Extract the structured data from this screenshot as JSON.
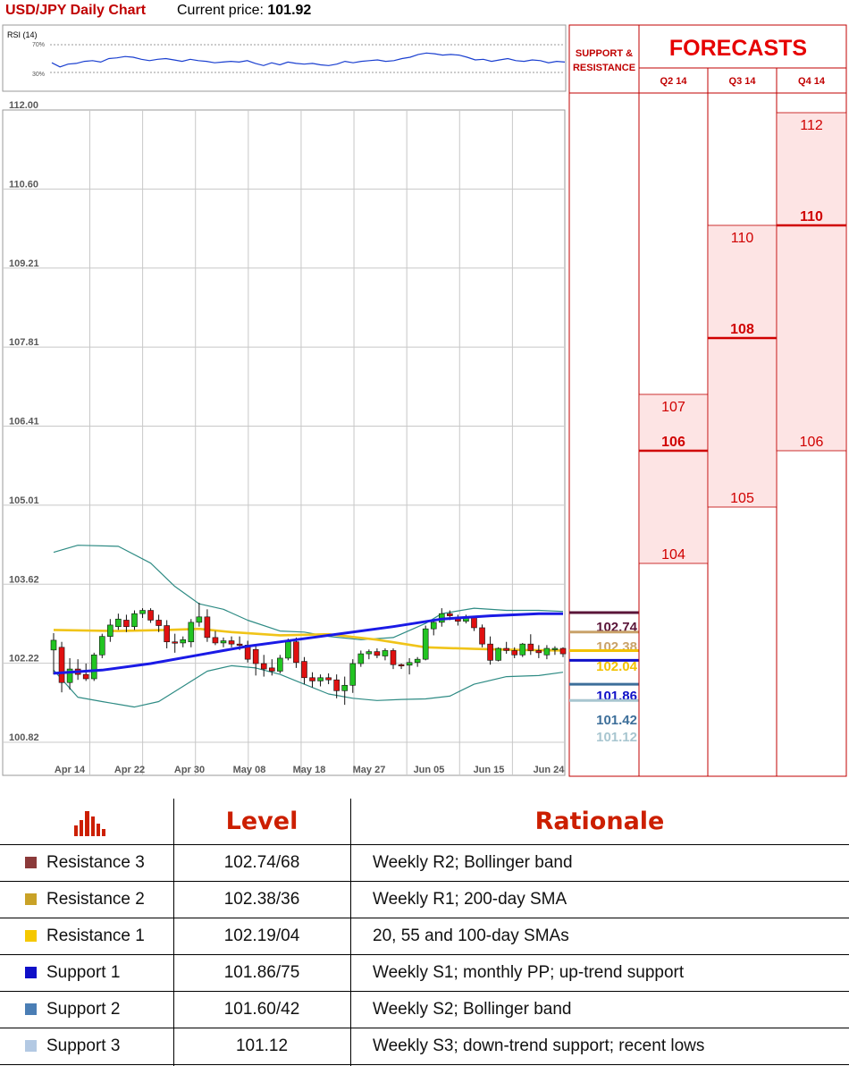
{
  "header": {
    "title": "USD/JPY Daily Chart",
    "price_label": "Current price:",
    "price_value": "101.92"
  },
  "colors": {
    "bull_candle": "#22c422",
    "bear_candle": "#e01010",
    "sma_blue": "#1a1ae6",
    "sma_yellow": "#f0c419",
    "bollinger": "#2e8b84",
    "rsi_line": "#1a3fd0",
    "forecast_red": "#d00000",
    "forecast_fill": "#fde4e4"
  },
  "chart_data": [
    {
      "type": "line",
      "title": "RSI (14)",
      "ylim": [
        0,
        100
      ],
      "reference_levels": [
        "70%",
        "30%"
      ],
      "series": [
        {
          "values": [
            44,
            38,
            42,
            43,
            46,
            47,
            45,
            50,
            51,
            53,
            52,
            49,
            47,
            49,
            50,
            48,
            46,
            49,
            47,
            46,
            44,
            45,
            46,
            45,
            47,
            43,
            40,
            44,
            41,
            45,
            43,
            42,
            43,
            41,
            40,
            42,
            46,
            44,
            46,
            47,
            48,
            46,
            47,
            50,
            52,
            56,
            58,
            57,
            55,
            56,
            55,
            52,
            48,
            49,
            46,
            48,
            50,
            47,
            46,
            48,
            47,
            44,
            46,
            45
          ]
        }
      ]
    },
    {
      "type": "candlestick",
      "title": "USD/JPY Daily Chart",
      "ylim": [
        100.35,
        112.0
      ],
      "y_tick_labels": [
        "112.00",
        "110.60",
        "109.21",
        "107.81",
        "106.41",
        "105.01",
        "103.62",
        "102.22",
        "100.82"
      ],
      "x_tick_labels": [
        "Apr 14",
        "Apr 22",
        "Apr 30",
        "May 08",
        "May 18",
        "May 27",
        "Jun 05",
        "Jun 15",
        "Jun 24"
      ],
      "grid": true,
      "candles": [
        {
          "o": 102.05,
          "h": 102.36,
          "l": 101.6,
          "c": 102.23
        },
        {
          "o": 102.1,
          "h": 102.2,
          "l": 101.27,
          "c": 101.45
        },
        {
          "o": 101.45,
          "h": 101.9,
          "l": 101.32,
          "c": 101.7
        },
        {
          "o": 101.7,
          "h": 101.88,
          "l": 101.5,
          "c": 101.6
        },
        {
          "o": 101.6,
          "h": 101.8,
          "l": 101.48,
          "c": 101.52
        },
        {
          "o": 101.52,
          "h": 102.0,
          "l": 101.48,
          "c": 101.96
        },
        {
          "o": 101.96,
          "h": 102.35,
          "l": 101.9,
          "c": 102.3
        },
        {
          "o": 102.3,
          "h": 102.62,
          "l": 102.2,
          "c": 102.51
        },
        {
          "o": 102.48,
          "h": 102.72,
          "l": 102.42,
          "c": 102.62
        },
        {
          "o": 102.6,
          "h": 102.7,
          "l": 102.38,
          "c": 102.48
        },
        {
          "o": 102.48,
          "h": 102.78,
          "l": 102.42,
          "c": 102.72
        },
        {
          "o": 102.72,
          "h": 102.82,
          "l": 102.64,
          "c": 102.78
        },
        {
          "o": 102.78,
          "h": 102.82,
          "l": 102.55,
          "c": 102.6
        },
        {
          "o": 102.6,
          "h": 102.7,
          "l": 102.38,
          "c": 102.5
        },
        {
          "o": 102.5,
          "h": 102.6,
          "l": 102.08,
          "c": 102.2
        },
        {
          "o": 102.2,
          "h": 102.35,
          "l": 102.0,
          "c": 102.18
        },
        {
          "o": 102.18,
          "h": 102.3,
          "l": 102.1,
          "c": 102.24
        },
        {
          "o": 102.2,
          "h": 102.62,
          "l": 102.1,
          "c": 102.56
        },
        {
          "o": 102.56,
          "h": 102.92,
          "l": 102.48,
          "c": 102.66
        },
        {
          "o": 102.66,
          "h": 102.8,
          "l": 102.2,
          "c": 102.28
        },
        {
          "o": 102.28,
          "h": 102.4,
          "l": 102.14,
          "c": 102.18
        },
        {
          "o": 102.18,
          "h": 102.28,
          "l": 102.1,
          "c": 102.22
        },
        {
          "o": 102.22,
          "h": 102.3,
          "l": 102.1,
          "c": 102.16
        },
        {
          "o": 102.16,
          "h": 102.3,
          "l": 102.05,
          "c": 102.14
        },
        {
          "o": 102.14,
          "h": 102.22,
          "l": 101.82,
          "c": 101.88
        },
        {
          "o": 102.06,
          "h": 102.14,
          "l": 101.58,
          "c": 101.8
        },
        {
          "o": 101.8,
          "h": 101.96,
          "l": 101.56,
          "c": 101.7
        },
        {
          "o": 101.72,
          "h": 101.88,
          "l": 101.58,
          "c": 101.66
        },
        {
          "o": 101.66,
          "h": 101.96,
          "l": 101.62,
          "c": 101.9
        },
        {
          "o": 101.9,
          "h": 102.26,
          "l": 101.86,
          "c": 102.2
        },
        {
          "o": 102.2,
          "h": 102.28,
          "l": 101.72,
          "c": 101.82
        },
        {
          "o": 101.84,
          "h": 101.92,
          "l": 101.42,
          "c": 101.54
        },
        {
          "o": 101.54,
          "h": 101.64,
          "l": 101.36,
          "c": 101.48
        },
        {
          "o": 101.48,
          "h": 101.6,
          "l": 101.38,
          "c": 101.54
        },
        {
          "o": 101.54,
          "h": 101.62,
          "l": 101.42,
          "c": 101.5
        },
        {
          "o": 101.5,
          "h": 101.6,
          "l": 101.16,
          "c": 101.3
        },
        {
          "o": 101.3,
          "h": 101.56,
          "l": 101.04,
          "c": 101.4
        },
        {
          "o": 101.4,
          "h": 101.88,
          "l": 101.26,
          "c": 101.8
        },
        {
          "o": 101.8,
          "h": 102.04,
          "l": 101.74,
          "c": 101.98
        },
        {
          "o": 101.98,
          "h": 102.06,
          "l": 101.88,
          "c": 102.02
        },
        {
          "o": 102.02,
          "h": 102.08,
          "l": 101.9,
          "c": 101.95
        },
        {
          "o": 101.94,
          "h": 102.08,
          "l": 101.86,
          "c": 102.04
        },
        {
          "o": 102.04,
          "h": 102.08,
          "l": 101.7,
          "c": 101.78
        },
        {
          "o": 101.78,
          "h": 101.8,
          "l": 101.7,
          "c": 101.77
        },
        {
          "o": 101.77,
          "h": 101.9,
          "l": 101.6,
          "c": 101.82
        },
        {
          "o": 101.82,
          "h": 101.92,
          "l": 101.74,
          "c": 101.88
        },
        {
          "o": 101.88,
          "h": 102.5,
          "l": 101.86,
          "c": 102.44
        },
        {
          "o": 102.44,
          "h": 102.6,
          "l": 102.32,
          "c": 102.56
        },
        {
          "o": 102.56,
          "h": 102.82,
          "l": 102.48,
          "c": 102.72
        },
        {
          "o": 102.72,
          "h": 102.78,
          "l": 102.6,
          "c": 102.68
        },
        {
          "o": 102.62,
          "h": 102.7,
          "l": 102.5,
          "c": 102.58
        },
        {
          "o": 102.58,
          "h": 102.7,
          "l": 102.54,
          "c": 102.66
        },
        {
          "o": 102.66,
          "h": 102.68,
          "l": 102.4,
          "c": 102.46
        },
        {
          "o": 102.46,
          "h": 102.52,
          "l": 102.1,
          "c": 102.16
        },
        {
          "o": 102.16,
          "h": 102.3,
          "l": 101.78,
          "c": 101.86
        },
        {
          "o": 101.86,
          "h": 102.1,
          "l": 101.84,
          "c": 102.08
        },
        {
          "o": 102.08,
          "h": 102.2,
          "l": 101.98,
          "c": 102.04
        },
        {
          "o": 102.04,
          "h": 102.1,
          "l": 101.9,
          "c": 101.96
        },
        {
          "o": 101.96,
          "h": 102.18,
          "l": 101.92,
          "c": 102.16
        },
        {
          "o": 102.16,
          "h": 102.34,
          "l": 101.96,
          "c": 102.04
        },
        {
          "o": 102.04,
          "h": 102.14,
          "l": 101.9,
          "c": 102.0
        },
        {
          "o": 101.96,
          "h": 102.14,
          "l": 101.88,
          "c": 102.08
        },
        {
          "o": 102.08,
          "h": 102.12,
          "l": 101.96,
          "c": 102.08
        },
        {
          "o": 102.08,
          "h": 102.1,
          "l": 101.92,
          "c": 101.98
        }
      ],
      "overlays": [
        {
          "kind": "sma_blue",
          "values": [
            [
              0,
              101.62
            ],
            [
              6,
              101.68
            ],
            [
              12,
              101.8
            ],
            [
              18,
              101.96
            ],
            [
              24,
              102.12
            ],
            [
              30,
              102.24
            ],
            [
              36,
              102.36
            ],
            [
              42,
              102.48
            ],
            [
              48,
              102.62
            ],
            [
              54,
              102.68
            ],
            [
              60,
              102.72
            ],
            [
              63,
              102.72
            ]
          ]
        },
        {
          "kind": "sma_yellow",
          "values": [
            [
              0,
              102.42
            ],
            [
              8,
              102.4
            ],
            [
              14,
              102.42
            ],
            [
              18,
              102.44
            ],
            [
              22,
              102.38
            ],
            [
              28,
              102.32
            ],
            [
              34,
              102.34
            ],
            [
              40,
              102.24
            ],
            [
              46,
              102.1
            ],
            [
              52,
              102.07
            ],
            [
              58,
              102.05
            ],
            [
              63,
              102.04
            ]
          ]
        },
        {
          "kind": "bollinger_upper",
          "values": [
            [
              0,
              103.85
            ],
            [
              3,
              103.98
            ],
            [
              8,
              103.96
            ],
            [
              12,
              103.65
            ],
            [
              15,
              103.22
            ],
            [
              18,
              102.9
            ],
            [
              21,
              102.8
            ],
            [
              24,
              102.6
            ],
            [
              28,
              102.4
            ],
            [
              31,
              102.38
            ],
            [
              34,
              102.3
            ],
            [
              38,
              102.24
            ],
            [
              42,
              102.28
            ],
            [
              46,
              102.54
            ],
            [
              48,
              102.72
            ],
            [
              52,
              102.82
            ],
            [
              56,
              102.78
            ],
            [
              60,
              102.78
            ],
            [
              63,
              102.76
            ]
          ]
        },
        {
          "kind": "bollinger_lower",
          "values": [
            [
              0,
              101.68
            ],
            [
              3,
              101.18
            ],
            [
              6,
              101.1
            ],
            [
              10,
              101.0
            ],
            [
              13,
              101.1
            ],
            [
              16,
              101.38
            ],
            [
              19,
              101.66
            ],
            [
              22,
              101.76
            ],
            [
              25,
              101.72
            ],
            [
              28,
              101.6
            ],
            [
              31,
              101.42
            ],
            [
              34,
              101.24
            ],
            [
              37,
              101.16
            ],
            [
              40,
              101.12
            ],
            [
              43,
              101.14
            ],
            [
              46,
              101.15
            ],
            [
              49,
              101.2
            ],
            [
              52,
              101.42
            ],
            [
              56,
              101.56
            ],
            [
              60,
              101.58
            ],
            [
              63,
              101.64
            ]
          ]
        }
      ],
      "support_resistance_labels": [
        {
          "label": "102.74",
          "value": 102.74,
          "color": "#5a1538"
        },
        {
          "label": "102.38",
          "value": 102.38,
          "color": "#c9a26a"
        },
        {
          "label": "102.04",
          "value": 102.04,
          "color": "#f2c200"
        },
        {
          "label": "101.86",
          "value": 101.86,
          "color": "#1010c8"
        },
        {
          "label": "101.42",
          "value": 101.42,
          "color": "#3d6f9a"
        },
        {
          "label": "101.12",
          "value": 101.12,
          "color": "#a8c6d0"
        }
      ]
    },
    {
      "type": "bar",
      "title": "FORECASTS",
      "categories": [
        "Q2 14",
        "Q3 14",
        "Q4 14"
      ],
      "ranges": [
        {
          "category": "Q2 14",
          "low": 104,
          "mid": 106,
          "high": 107
        },
        {
          "category": "Q3 14",
          "low": 105,
          "mid": 108,
          "high": 110
        },
        {
          "category": "Q4 14",
          "low": 106,
          "mid": 110,
          "high": 112
        }
      ]
    }
  ],
  "forecast_panel": {
    "sr_header": "SUPPORT & RESISTANCE",
    "title": "FORECASTS",
    "quarters": [
      "Q2 14",
      "Q3 14",
      "Q4 14"
    ]
  },
  "table": {
    "level_header": "Level",
    "rationale_header": "Rationale",
    "rows": [
      {
        "name": "Resistance 3",
        "level": "102.74/68",
        "rationale": "Weekly R2; Bollinger band",
        "color": "#8b3a3a"
      },
      {
        "name": "Resistance 2",
        "level": "102.38/36",
        "rationale": "Weekly R1; 200-day SMA",
        "color": "#c9a227"
      },
      {
        "name": "Resistance 1",
        "level": "102.19/04",
        "rationale": "20, 55 and 100-day SMAs",
        "color": "#f5c800"
      },
      {
        "name": "Support 1",
        "level": "101.86/75",
        "rationale": "Weekly S1; monthly PP; up-trend support",
        "color": "#1010c8"
      },
      {
        "name": "Support 2",
        "level": "101.60/42",
        "rationale": "Weekly S2; Bollinger band",
        "color": "#4a7eb5"
      },
      {
        "name": "Support 3",
        "level": "101.12",
        "rationale": "Weekly S3; down-trend support; recent lows",
        "color": "#b3c9e3"
      }
    ]
  }
}
